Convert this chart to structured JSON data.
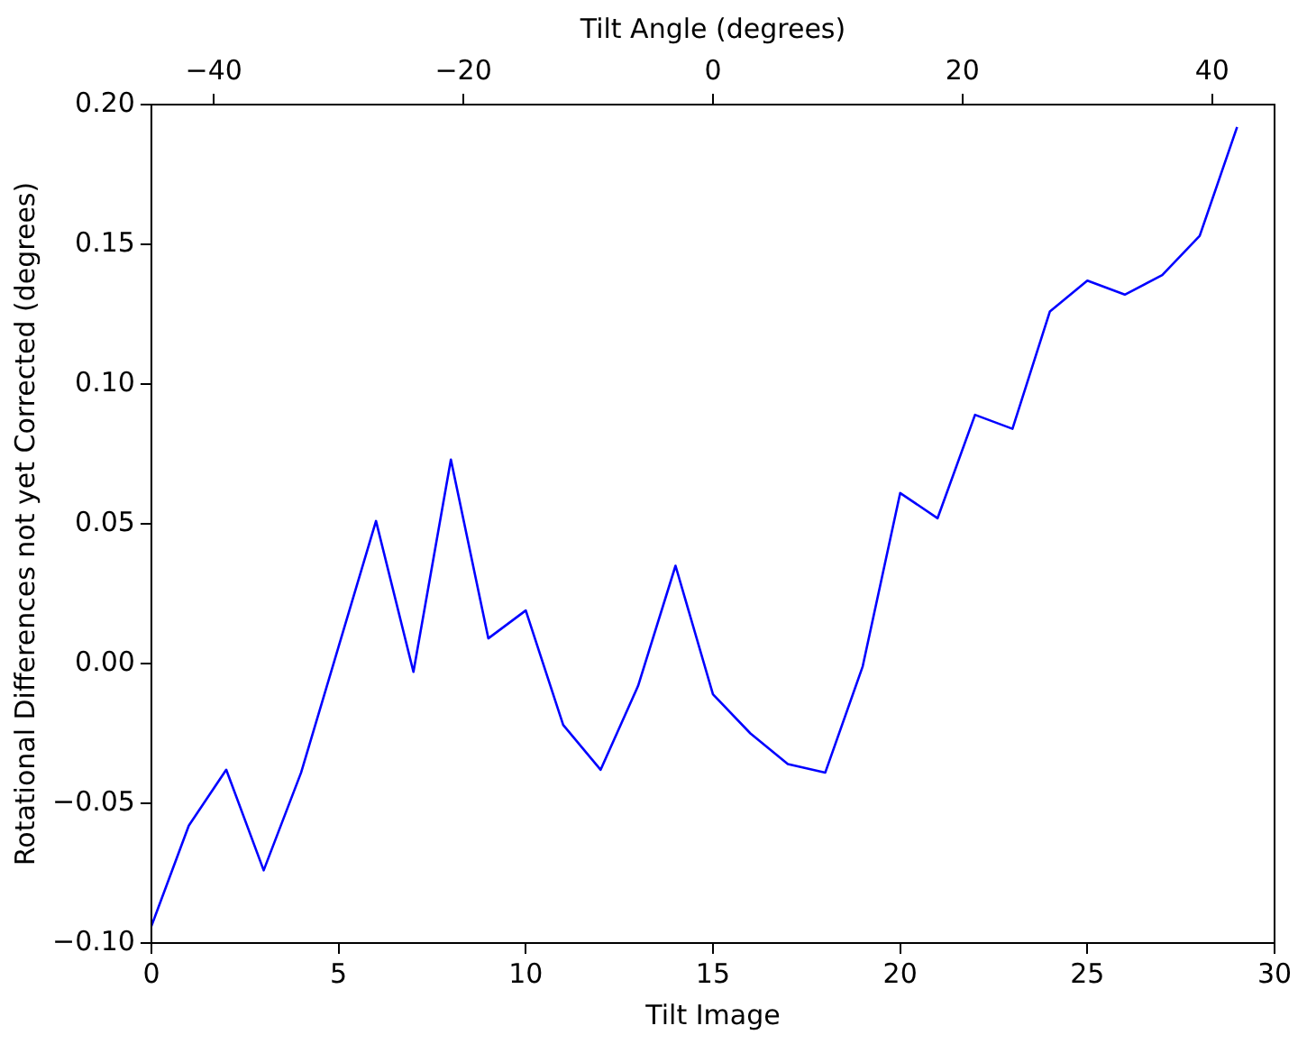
{
  "chart_data": {
    "type": "line",
    "xlabel": "Tilt Image",
    "ylabel": "Rotational Differences not yet Corrected (degrees)",
    "x2label": "Tilt Angle (degrees)",
    "x": [
      0,
      1,
      2,
      3,
      4,
      5,
      6,
      7,
      8,
      9,
      10,
      11,
      12,
      13,
      14,
      15,
      16,
      17,
      18,
      19,
      20,
      21,
      22,
      23,
      24,
      25,
      26,
      27,
      28,
      29
    ],
    "series": [
      {
        "color": "#0000ff",
        "values": [
          -0.094,
          -0.058,
          -0.038,
          -0.074,
          -0.039,
          0.006,
          0.051,
          -0.003,
          0.073,
          0.009,
          0.019,
          -0.022,
          -0.038,
          -0.008,
          0.035,
          -0.011,
          -0.025,
          -0.036,
          -0.039,
          -0.001,
          0.061,
          0.052,
          0.089,
          0.084,
          0.126,
          0.137,
          0.132,
          0.139,
          0.153,
          0.192
        ]
      }
    ],
    "xlim": [
      0,
      30
    ],
    "xticks": [
      0,
      5,
      10,
      15,
      20,
      25,
      30
    ],
    "ylim": [
      -0.1,
      0.2
    ],
    "yticks": [
      {
        "value": -0.1,
        "label": "−0.10"
      },
      {
        "value": -0.05,
        "label": "−0.05"
      },
      {
        "value": 0,
        "label": "0.00"
      },
      {
        "value": 0.05,
        "label": "0.05"
      },
      {
        "value": 0.1,
        "label": "0.10"
      },
      {
        "value": 0.15,
        "label": "0.15"
      },
      {
        "value": 0.2,
        "label": "0.20"
      }
    ],
    "x2lim": [
      -45,
      45
    ],
    "x2ticks": [
      {
        "value": -40,
        "label": "−40"
      },
      {
        "value": -20,
        "label": "−20"
      },
      0,
      20,
      40
    ],
    "grid": false,
    "legend": false,
    "marker": "none",
    "line_style": "solid"
  }
}
